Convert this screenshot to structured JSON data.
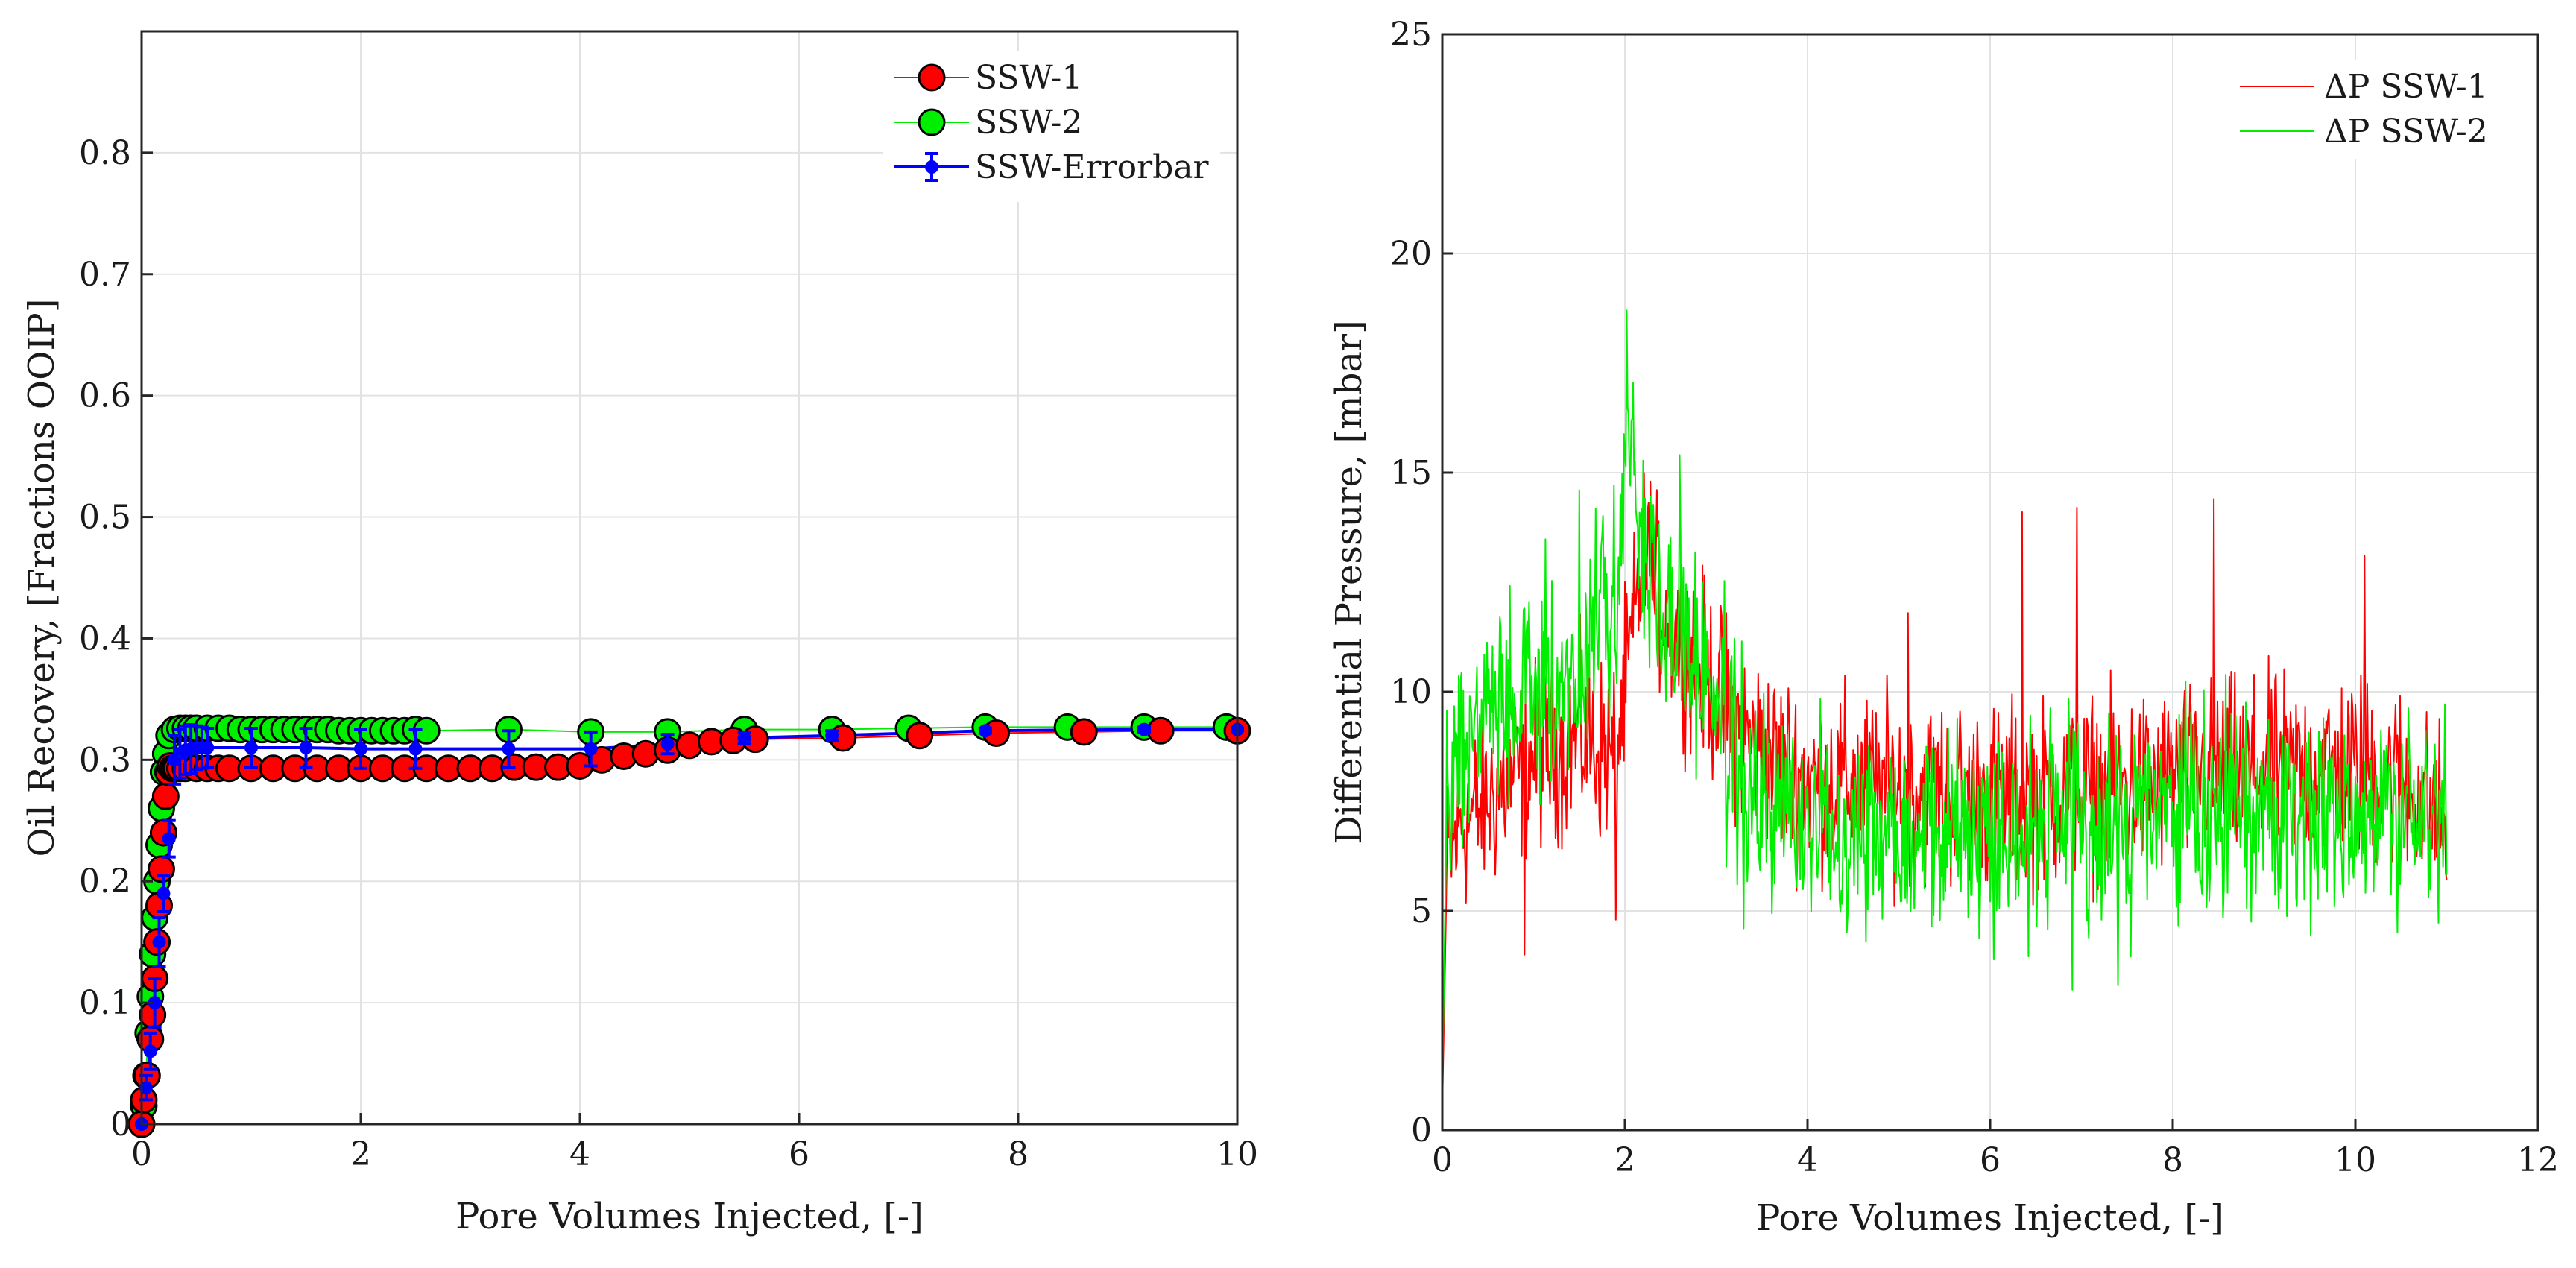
{
  "chart_data": [
    {
      "type": "scatter",
      "xlabel": "Pore Volumes Injected, [-]",
      "ylabel": "Oil Recovery, [Fractions OOIP]",
      "xlim": [
        0,
        10
      ],
      "ylim": [
        0,
        0.9
      ],
      "xticks": [
        0,
        2,
        4,
        6,
        8,
        10
      ],
      "xtick_labels": [
        "0",
        "2",
        "4",
        "6",
        "8",
        "10"
      ],
      "yticks": [
        0,
        0.1,
        0.2,
        0.3,
        0.4,
        0.5,
        0.6,
        0.7,
        0.8
      ],
      "ytick_labels": [
        "0",
        "0.1",
        "0.2",
        "0.3",
        "0.4",
        "0.5",
        "0.6",
        "0.7",
        "0.8"
      ],
      "grid": true,
      "legend_position": "top-right",
      "series": [
        {
          "name": "SSW-1",
          "color": "#ff0000",
          "marker": "circle",
          "x": [
            0,
            0.02,
            0.05,
            0.08,
            0.1,
            0.12,
            0.14,
            0.16,
            0.18,
            0.2,
            0.22,
            0.24,
            0.26,
            0.28,
            0.3,
            0.32,
            0.35,
            0.4,
            0.5,
            0.6,
            0.7,
            0.8,
            1.0,
            1.2,
            1.4,
            1.6,
            1.8,
            2.0,
            2.2,
            2.4,
            2.6,
            2.8,
            3.0,
            3.2,
            3.4,
            3.6,
            3.8,
            4.0,
            4.2,
            4.4,
            4.6,
            4.8,
            5.0,
            5.2,
            5.4,
            5.6,
            6.4,
            7.1,
            7.8,
            8.6,
            9.3,
            10.0
          ],
          "y": [
            0,
            0.02,
            0.04,
            0.07,
            0.09,
            0.12,
            0.15,
            0.18,
            0.21,
            0.24,
            0.27,
            0.29,
            0.295,
            0.293,
            0.293,
            0.293,
            0.293,
            0.293,
            0.293,
            0.293,
            0.293,
            0.293,
            0.293,
            0.293,
            0.293,
            0.293,
            0.293,
            0.293,
            0.293,
            0.293,
            0.293,
            0.293,
            0.293,
            0.293,
            0.294,
            0.294,
            0.294,
            0.295,
            0.3,
            0.303,
            0.305,
            0.308,
            0.312,
            0.315,
            0.316,
            0.317,
            0.318,
            0.32,
            0.322,
            0.323,
            0.324,
            0.324
          ]
        },
        {
          "name": "SSW-2",
          "color": "#00ee00",
          "marker": "circle",
          "x": [
            0,
            0.02,
            0.04,
            0.06,
            0.08,
            0.1,
            0.12,
            0.14,
            0.16,
            0.18,
            0.2,
            0.22,
            0.25,
            0.3,
            0.35,
            0.4,
            0.45,
            0.5,
            0.6,
            0.7,
            0.8,
            0.9,
            1.0,
            1.1,
            1.2,
            1.3,
            1.4,
            1.5,
            1.6,
            1.7,
            1.8,
            1.9,
            2.0,
            2.1,
            2.2,
            2.3,
            2.4,
            2.5,
            2.6,
            3.35,
            4.1,
            4.8,
            5.5,
            6.3,
            7.0,
            7.7,
            8.45,
            9.15,
            9.9
          ],
          "y": [
            0,
            0.015,
            0.04,
            0.075,
            0.105,
            0.14,
            0.17,
            0.2,
            0.23,
            0.26,
            0.29,
            0.305,
            0.32,
            0.325,
            0.326,
            0.326,
            0.326,
            0.326,
            0.326,
            0.326,
            0.326,
            0.325,
            0.325,
            0.325,
            0.325,
            0.325,
            0.325,
            0.325,
            0.325,
            0.325,
            0.324,
            0.324,
            0.324,
            0.324,
            0.324,
            0.324,
            0.324,
            0.325,
            0.324,
            0.325,
            0.323,
            0.323,
            0.325,
            0.325,
            0.326,
            0.327,
            0.327,
            0.327,
            0.327
          ]
        },
        {
          "name": "SSW-Errorbar",
          "color": "#0000ff",
          "marker": "dot",
          "x": [
            0,
            0.04,
            0.08,
            0.12,
            0.16,
            0.2,
            0.25,
            0.3,
            0.35,
            0.4,
            0.45,
            0.5,
            0.55,
            0.6,
            1.0,
            1.5,
            2.0,
            2.5,
            3.35,
            4.1,
            4.8,
            5.5,
            6.3,
            7.7,
            9.15,
            10.0
          ],
          "y": [
            0,
            0.03,
            0.06,
            0.1,
            0.15,
            0.19,
            0.235,
            0.3,
            0.305,
            0.308,
            0.309,
            0.31,
            0.31,
            0.31,
            0.31,
            0.31,
            0.309,
            0.309,
            0.309,
            0.309,
            0.313,
            0.318,
            0.32,
            0.324,
            0.325,
            0.325
          ],
          "error": [
            0,
            0.01,
            0.015,
            0.02,
            0.02,
            0.015,
            0.015,
            0.02,
            0.02,
            0.02,
            0.02,
            0.018,
            0.017,
            0.016,
            0.016,
            0.016,
            0.016,
            0.016,
            0.015,
            0.014,
            0.008,
            0.005,
            0.004,
            0.002,
            0.002,
            0.001
          ]
        }
      ]
    },
    {
      "type": "line",
      "xlabel": "Pore Volumes Injected, [-]",
      "ylabel": "Differential Pressure, [mbar]",
      "xlim": [
        0,
        12
      ],
      "ylim": [
        0,
        25
      ],
      "xticks": [
        0,
        2,
        4,
        6,
        8,
        10,
        12
      ],
      "xtick_labels": [
        "0",
        "2",
        "4",
        "6",
        "8",
        "10",
        "12"
      ],
      "yticks": [
        0,
        5,
        10,
        15,
        20,
        25
      ],
      "ytick_labels": [
        "0",
        "5",
        "10",
        "15",
        "20",
        "25"
      ],
      "grid": true,
      "legend_position": "top-right",
      "series": [
        {
          "name": "ΔP SSW-1",
          "color": "#ff0000",
          "x_end": 11.0,
          "n_points": 1100,
          "x_anchor": [
            0,
            0.05,
            0.2,
            0.5,
            1.0,
            1.5,
            1.9,
            2.2,
            2.4,
            2.7,
            3.0,
            3.3,
            3.6,
            4.0,
            5.0,
            6.0,
            7.0,
            8.0,
            9.0,
            10.0,
            10.5,
            11.0
          ],
          "y_anchor": [
            0.5,
            6.0,
            7.0,
            7.5,
            8.5,
            9.0,
            8.5,
            13.0,
            12.0,
            11.0,
            10.0,
            9.0,
            8.5,
            8.0,
            7.8,
            7.6,
            7.7,
            8.0,
            8.2,
            8.3,
            8.0,
            7.0
          ],
          "noise": 1.6,
          "spikes": [
            [
              0.9,
              4.0
            ],
            [
              1.9,
              4.8
            ],
            [
              2.28,
              14.8
            ],
            [
              6.35,
              14.1
            ],
            [
              6.95,
              14.2
            ],
            [
              8.45,
              14.4
            ],
            [
              10.1,
              13.1
            ],
            [
              5.1,
              11.8
            ]
          ]
        },
        {
          "name": "ΔP SSW-2",
          "color": "#00ee00",
          "x_end": 11.0,
          "n_points": 1100,
          "x_anchor": [
            0,
            0.05,
            0.2,
            0.5,
            1.0,
            1.5,
            1.9,
            2.05,
            2.2,
            2.5,
            2.9,
            3.2,
            3.4,
            4.0,
            5.0,
            6.0,
            7.0,
            8.0,
            9.0,
            10.0,
            10.5,
            11.0
          ],
          "y_anchor": [
            1.0,
            7.5,
            9.0,
            9.5,
            10.0,
            10.5,
            12.5,
            16.0,
            13.0,
            11.5,
            10.5,
            8.5,
            7.5,
            7.0,
            7.0,
            6.8,
            6.9,
            7.2,
            7.3,
            7.4,
            7.2,
            7.2
          ],
          "noise": 1.8,
          "spikes": [
            [
              2.02,
              18.7
            ],
            [
              2.6,
              15.4
            ],
            [
              1.5,
              14.6
            ],
            [
              6.9,
              3.2
            ],
            [
              7.4,
              3.3
            ],
            [
              3.3,
              4.6
            ]
          ]
        }
      ]
    }
  ]
}
